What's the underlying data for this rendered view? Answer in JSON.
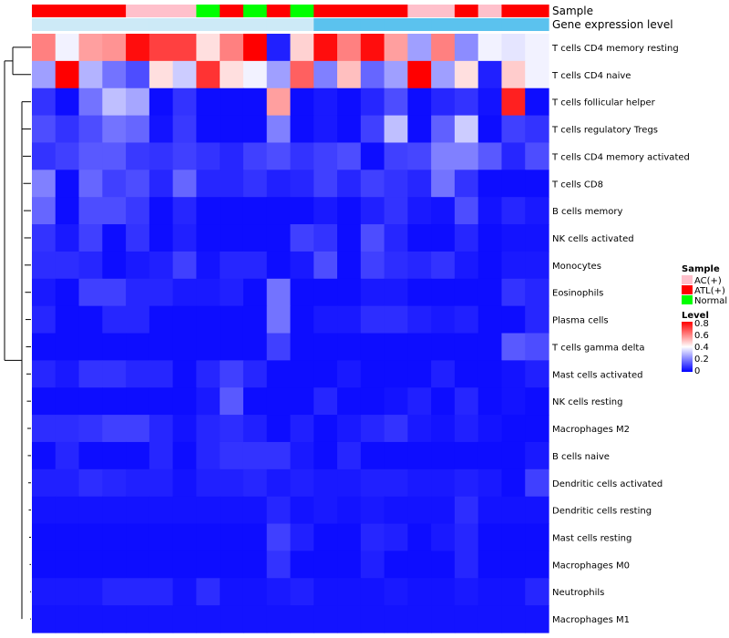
{
  "chart_data": {
    "type": "heatmap",
    "annotation_labels": [
      "Sample",
      "Gene expression level"
    ],
    "sample_groups": [
      "ATL(+)",
      "ATL(+)",
      "ATL(+)",
      "ATL(+)",
      "AC(+)",
      "AC(+)",
      "AC(+)",
      "Normal",
      "ATL(+)",
      "Normal",
      "ATL(+)",
      "Normal",
      "ATL(+)",
      "ATL(+)",
      "ATL(+)",
      "ATL(+)",
      "AC(+)",
      "AC(+)",
      "ATL(+)",
      "AC(+)",
      "ATL(+)",
      "ATL(+)"
    ],
    "expression_groups": [
      "low",
      "low",
      "low",
      "low",
      "low",
      "low",
      "low",
      "low",
      "low",
      "low",
      "low",
      "low",
      "high",
      "high",
      "high",
      "high",
      "high",
      "high",
      "high",
      "high",
      "high",
      "high"
    ],
    "expression_colors": {
      "low": "#cdeaf7",
      "high": "#5bc2ee"
    },
    "sample_legend": {
      "title": "Sample",
      "items": [
        {
          "label": "AC(+)",
          "color": "#ffc0cb"
        },
        {
          "label": "ATL(+)",
          "color": "#ff0000"
        },
        {
          "label": "Normal",
          "color": "#00ff00"
        }
      ]
    },
    "level_legend": {
      "title": "Level",
      "ticks": [
        "0.8",
        "0.6",
        "0.4",
        "0.2",
        "0"
      ],
      "range": [
        0,
        0.8
      ],
      "colors": [
        "#0000ff",
        "#ffffff",
        "#ff0000"
      ]
    },
    "rows": [
      {
        "label": "T cells CD4 memory resting",
        "values": [
          0.6,
          0.38,
          0.55,
          0.57,
          0.78,
          0.7,
          0.7,
          0.45,
          0.6,
          0.8,
          0.05,
          0.47,
          0.78,
          0.6,
          0.78,
          0.55,
          0.25,
          0.6,
          0.22,
          0.38,
          0.36,
          0.38
        ]
      },
      {
        "label": "T cells CD4 naive",
        "values": [
          0.25,
          0.8,
          0.28,
          0.18,
          0.12,
          0.45,
          0.32,
          0.72,
          0.45,
          0.38,
          0.25,
          0.65,
          0.2,
          0.5,
          0.16,
          0.25,
          0.8,
          0.25,
          0.45,
          0.05,
          0.48,
          0.38
        ]
      },
      {
        "label": "T cells follicular helper",
        "values": [
          0.08,
          0.02,
          0.18,
          0.3,
          0.26,
          0.02,
          0.08,
          0.02,
          0.02,
          0.02,
          0.55,
          0.02,
          0.04,
          0.02,
          0.06,
          0.12,
          0.02,
          0.06,
          0.08,
          0.03,
          0.75,
          0.02
        ]
      },
      {
        "label": "T cells regulatory  Tregs",
        "values": [
          0.12,
          0.08,
          0.12,
          0.18,
          0.16,
          0.03,
          0.09,
          0.02,
          0.02,
          0.02,
          0.2,
          0.02,
          0.04,
          0.02,
          0.1,
          0.3,
          0.02,
          0.15,
          0.32,
          0.02,
          0.1,
          0.08
        ]
      },
      {
        "label": "T cells CD4 memory activated",
        "values": [
          0.08,
          0.1,
          0.14,
          0.14,
          0.09,
          0.08,
          0.1,
          0.08,
          0.06,
          0.1,
          0.12,
          0.08,
          0.1,
          0.12,
          0.02,
          0.1,
          0.11,
          0.2,
          0.2,
          0.14,
          0.06,
          0.12
        ]
      },
      {
        "label": "T cells CD8",
        "values": [
          0.2,
          0.02,
          0.16,
          0.1,
          0.12,
          0.06,
          0.16,
          0.06,
          0.06,
          0.08,
          0.05,
          0.06,
          0.1,
          0.06,
          0.1,
          0.08,
          0.06,
          0.18,
          0.08,
          0.02,
          0.02,
          0.02
        ]
      },
      {
        "label": "B cells memory",
        "values": [
          0.16,
          0.02,
          0.12,
          0.12,
          0.09,
          0.02,
          0.06,
          0.02,
          0.02,
          0.02,
          0.02,
          0.02,
          0.04,
          0.02,
          0.05,
          0.08,
          0.04,
          0.03,
          0.12,
          0.03,
          0.06,
          0.04
        ]
      },
      {
        "label": "NK cells activated",
        "values": [
          0.08,
          0.04,
          0.1,
          0.02,
          0.08,
          0.02,
          0.05,
          0.02,
          0.02,
          0.02,
          0.02,
          0.1,
          0.08,
          0.02,
          0.12,
          0.06,
          0.02,
          0.02,
          0.06,
          0.02,
          0.03,
          0.03
        ]
      },
      {
        "label": "Monocytes",
        "values": [
          0.07,
          0.07,
          0.06,
          0.02,
          0.04,
          0.05,
          0.1,
          0.03,
          0.06,
          0.06,
          0.02,
          0.04,
          0.12,
          0.02,
          0.1,
          0.07,
          0.06,
          0.08,
          0.04,
          0.02,
          0.04,
          0.04
        ]
      },
      {
        "label": "Eosinophils",
        "values": [
          0.04,
          0.02,
          0.1,
          0.1,
          0.06,
          0.06,
          0.04,
          0.04,
          0.05,
          0.02,
          0.18,
          0.02,
          0.02,
          0.02,
          0.04,
          0.04,
          0.02,
          0.02,
          0.02,
          0.02,
          0.08,
          0.06
        ]
      },
      {
        "label": "Plasma cells",
        "values": [
          0.06,
          0.02,
          0.02,
          0.06,
          0.06,
          0.02,
          0.02,
          0.02,
          0.02,
          0.02,
          0.18,
          0.02,
          0.04,
          0.04,
          0.07,
          0.07,
          0.05,
          0.04,
          0.05,
          0.02,
          0.02,
          0.06
        ]
      },
      {
        "label": "T cells gamma delta",
        "values": [
          0.02,
          0.02,
          0.02,
          0.02,
          0.02,
          0.02,
          0.02,
          0.02,
          0.02,
          0.02,
          0.1,
          0.02,
          0.02,
          0.02,
          0.02,
          0.02,
          0.02,
          0.02,
          0.02,
          0.02,
          0.14,
          0.12
        ]
      },
      {
        "label": "Mast cells activated",
        "values": [
          0.06,
          0.04,
          0.08,
          0.08,
          0.06,
          0.06,
          0.02,
          0.06,
          0.1,
          0.06,
          0.02,
          0.02,
          0.02,
          0.04,
          0.02,
          0.02,
          0.02,
          0.05,
          0.02,
          0.02,
          0.03,
          0.05
        ]
      },
      {
        "label": "NK cells resting",
        "values": [
          0.02,
          0.02,
          0.02,
          0.02,
          0.02,
          0.02,
          0.02,
          0.04,
          0.14,
          0.02,
          0.02,
          0.02,
          0.06,
          0.02,
          0.02,
          0.03,
          0.05,
          0.02,
          0.06,
          0.02,
          0.03,
          0.02
        ]
      },
      {
        "label": "Macrophages M2",
        "values": [
          0.07,
          0.07,
          0.08,
          0.1,
          0.1,
          0.06,
          0.03,
          0.06,
          0.07,
          0.05,
          0.02,
          0.05,
          0.02,
          0.04,
          0.06,
          0.08,
          0.04,
          0.03,
          0.05,
          0.03,
          0.02,
          0.02
        ]
      },
      {
        "label": "B cells naive",
        "values": [
          0.02,
          0.06,
          0.02,
          0.02,
          0.02,
          0.06,
          0.02,
          0.06,
          0.08,
          0.08,
          0.08,
          0.04,
          0.02,
          0.06,
          0.02,
          0.02,
          0.02,
          0.02,
          0.02,
          0.02,
          0.02,
          0.04
        ]
      },
      {
        "label": "Dendritic cells activated",
        "values": [
          0.05,
          0.05,
          0.07,
          0.06,
          0.05,
          0.05,
          0.03,
          0.05,
          0.05,
          0.06,
          0.04,
          0.05,
          0.04,
          0.04,
          0.05,
          0.05,
          0.04,
          0.04,
          0.05,
          0.04,
          0.02,
          0.1
        ]
      },
      {
        "label": "Dendritic cells resting",
        "values": [
          0.03,
          0.03,
          0.03,
          0.03,
          0.03,
          0.03,
          0.03,
          0.03,
          0.03,
          0.03,
          0.06,
          0.03,
          0.04,
          0.03,
          0.04,
          0.03,
          0.03,
          0.03,
          0.07,
          0.03,
          0.03,
          0.03
        ]
      },
      {
        "label": "Mast cells resting",
        "values": [
          0.02,
          0.02,
          0.02,
          0.02,
          0.02,
          0.02,
          0.02,
          0.02,
          0.02,
          0.02,
          0.1,
          0.05,
          0.02,
          0.02,
          0.06,
          0.05,
          0.02,
          0.04,
          0.06,
          0.02,
          0.02,
          0.02
        ]
      },
      {
        "label": "Macrophages M0",
        "values": [
          0.02,
          0.02,
          0.02,
          0.02,
          0.02,
          0.02,
          0.02,
          0.02,
          0.02,
          0.02,
          0.08,
          0.02,
          0.02,
          0.02,
          0.05,
          0.02,
          0.02,
          0.02,
          0.06,
          0.02,
          0.02,
          0.02
        ]
      },
      {
        "label": "Neutrophils",
        "values": [
          0.04,
          0.04,
          0.04,
          0.06,
          0.06,
          0.06,
          0.03,
          0.07,
          0.03,
          0.03,
          0.04,
          0.05,
          0.03,
          0.03,
          0.03,
          0.04,
          0.03,
          0.03,
          0.04,
          0.03,
          0.03,
          0.06
        ]
      },
      {
        "label": "Macrophages M1",
        "values": [
          0.03,
          0.03,
          0.03,
          0.03,
          0.03,
          0.03,
          0.03,
          0.03,
          0.03,
          0.03,
          0.03,
          0.03,
          0.03,
          0.03,
          0.03,
          0.03,
          0.03,
          0.03,
          0.03,
          0.03,
          0.03,
          0.03
        ]
      }
    ]
  }
}
